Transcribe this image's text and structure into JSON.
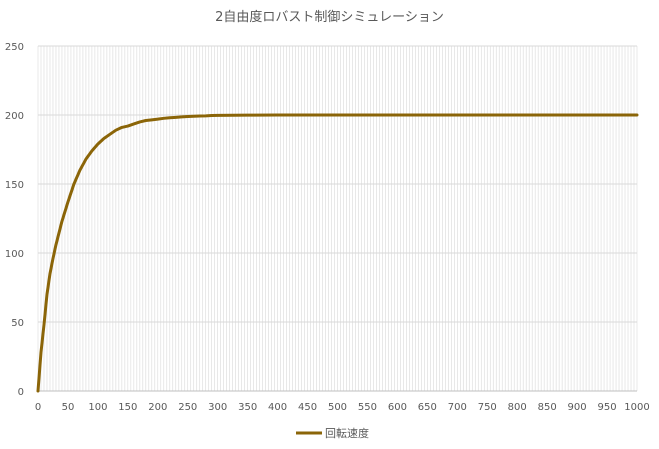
{
  "chart_data": {
    "type": "line",
    "title": "2自由度ロバスト制御シミュレーション",
    "xlabel": "",
    "ylabel": "",
    "xlim": [
      0,
      1000
    ],
    "ylim": [
      0,
      250
    ],
    "x_ticks": [
      0,
      50,
      100,
      150,
      200,
      250,
      300,
      350,
      400,
      450,
      500,
      550,
      600,
      650,
      700,
      750,
      800,
      850,
      900,
      950,
      1000
    ],
    "y_ticks": [
      0,
      50,
      100,
      150,
      200,
      250
    ],
    "grid": true,
    "legend_position": "bottom",
    "series": [
      {
        "name": "回転速度",
        "color": "#8B6508",
        "x": [
          0,
          5,
          10,
          15,
          20,
          25,
          30,
          40,
          50,
          60,
          70,
          80,
          90,
          100,
          110,
          120,
          130,
          140,
          150,
          160,
          170,
          180,
          190,
          200,
          210,
          220,
          230,
          240,
          250,
          260,
          270,
          280,
          290,
          300,
          350,
          400,
          500,
          600,
          700,
          800,
          900,
          1000
        ],
        "y": [
          0,
          28,
          48,
          70,
          85,
          96,
          106,
          123,
          137,
          150,
          160,
          168,
          174,
          179,
          183,
          186,
          189,
          191,
          192,
          193.5,
          195,
          196,
          196.5,
          197,
          197.6,
          198,
          198.3,
          198.6,
          198.9,
          199.1,
          199.3,
          199.4,
          199.6,
          199.7,
          199.9,
          200,
          200,
          200,
          200,
          200,
          200,
          200
        ]
      }
    ]
  }
}
